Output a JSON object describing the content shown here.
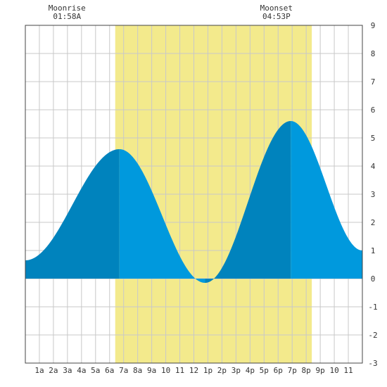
{
  "chart_data": {
    "type": "area",
    "title": "",
    "xlabel": "",
    "ylabel": "",
    "x_range_hours": [
      -1,
      23
    ],
    "ylim": [
      -3,
      9
    ],
    "grid": true,
    "x_tick_labels": [
      "1a",
      "2a",
      "3a",
      "4a",
      "5a",
      "6a",
      "7a",
      "8a",
      "9a",
      "10",
      "11",
      "12",
      "1p",
      "2p",
      "3p",
      "4p",
      "5p",
      "6p",
      "7p",
      "8p",
      "9p",
      "10",
      "11"
    ],
    "y_tick_labels": [
      "-3",
      "-2",
      "-1",
      "0",
      "1",
      "2",
      "3",
      "4",
      "5",
      "6",
      "7",
      "8",
      "9"
    ],
    "daylight_hours": [
      5.4,
      19.4
    ],
    "series": [
      {
        "x": [
          -1,
          5.7,
          11.8,
          17.9,
          23
        ],
        "y": [
          0.65,
          4.6,
          -0.15,
          5.6,
          1.0
        ]
      }
    ],
    "annotations": {
      "moonrise": {
        "label": "Moonrise",
        "time": "01:58A",
        "hour": 1.97
      },
      "moonset": {
        "label": "Moonset",
        "time": "04:53P",
        "hour": 16.88
      }
    },
    "colors": {
      "daylight": "#f3ea8c",
      "tide_rising": "#0083bd",
      "tide_falling": "#0099dd",
      "grid": "#c8c8c8",
      "frame": "#444444"
    }
  }
}
